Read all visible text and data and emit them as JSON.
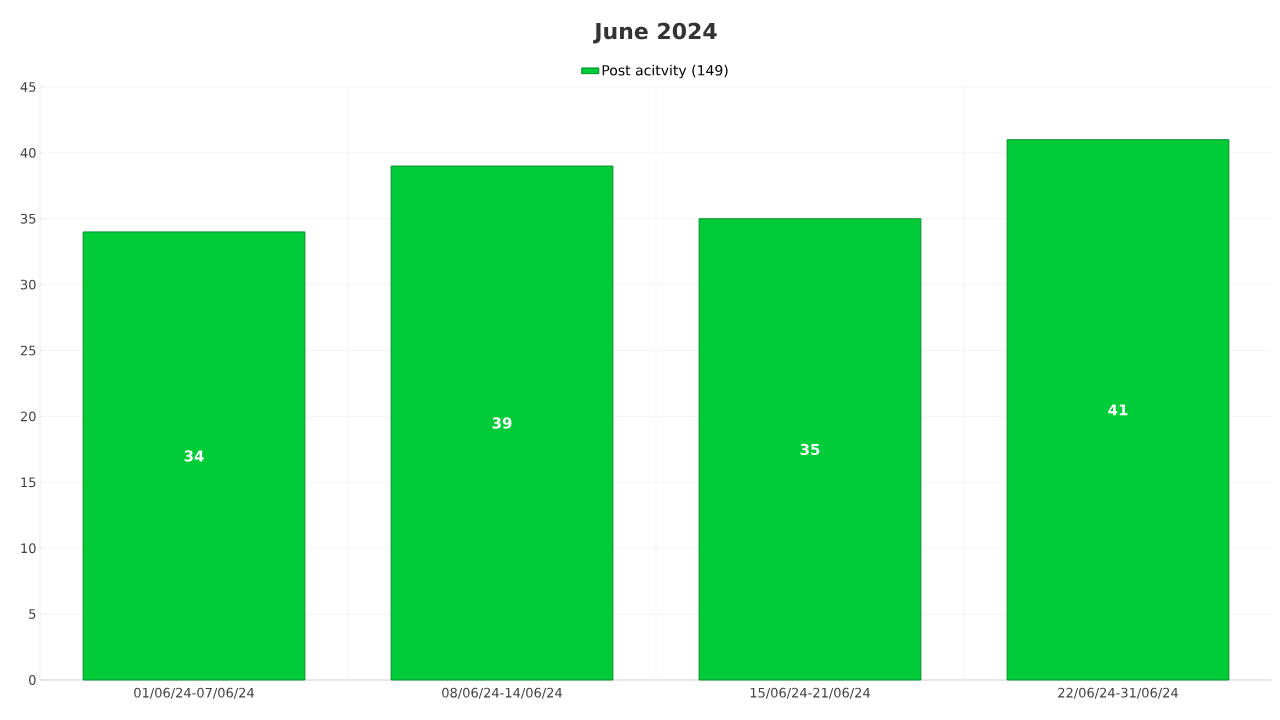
{
  "chart_data": {
    "type": "bar",
    "title": "June 2024",
    "categories": [
      "01/06/24-07/06/24",
      "08/06/24-14/06/24",
      "15/06/24-21/06/24",
      "22/06/24-31/06/24"
    ],
    "series": [
      {
        "name": "Post acitvity (149)",
        "color": "#00cc3a",
        "values": [
          34,
          39,
          35,
          41
        ]
      }
    ],
    "ylim": [
      0,
      45
    ],
    "yticks": [
      0,
      5,
      10,
      15,
      20,
      25,
      30,
      35,
      40,
      45
    ],
    "grid": true,
    "legend": "top",
    "data_labels": true
  }
}
